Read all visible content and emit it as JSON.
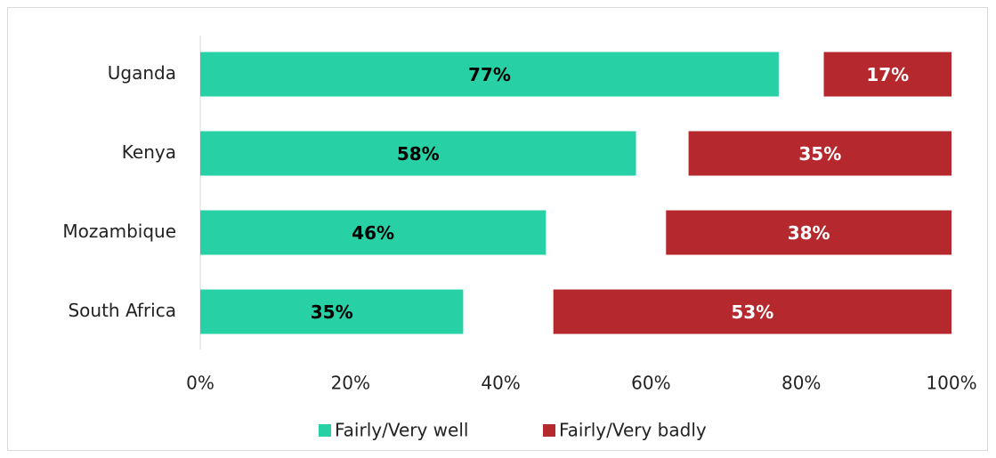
{
  "chart_data": {
    "type": "diverging_bar",
    "categories": [
      "Uganda",
      "Kenya",
      "Mozambique",
      "South Africa"
    ],
    "series": [
      {
        "name": "Fairly/Very well",
        "color": "#27d1a5",
        "values": [
          77,
          58,
          46,
          35
        ],
        "value_labels": [
          "77%",
          "58%",
          "46%",
          "35%"
        ],
        "label_color": "#000000"
      },
      {
        "name": "Fairly/Very badly",
        "color": "#b5282e",
        "values": [
          17,
          35,
          38,
          53
        ],
        "value_labels": [
          "17%",
          "35%",
          "38%",
          "53%"
        ],
        "label_color": "#ffffff"
      }
    ],
    "xlim": [
      0,
      100
    ],
    "xticks": [
      {
        "value": 0,
        "label": "0%"
      },
      {
        "value": 20,
        "label": "20%"
      },
      {
        "value": 40,
        "label": "40%"
      },
      {
        "value": 60,
        "label": "60%"
      },
      {
        "value": 80,
        "label": "80%"
      },
      {
        "value": 100,
        "label": "100%"
      }
    ],
    "legend": "bottom"
  }
}
